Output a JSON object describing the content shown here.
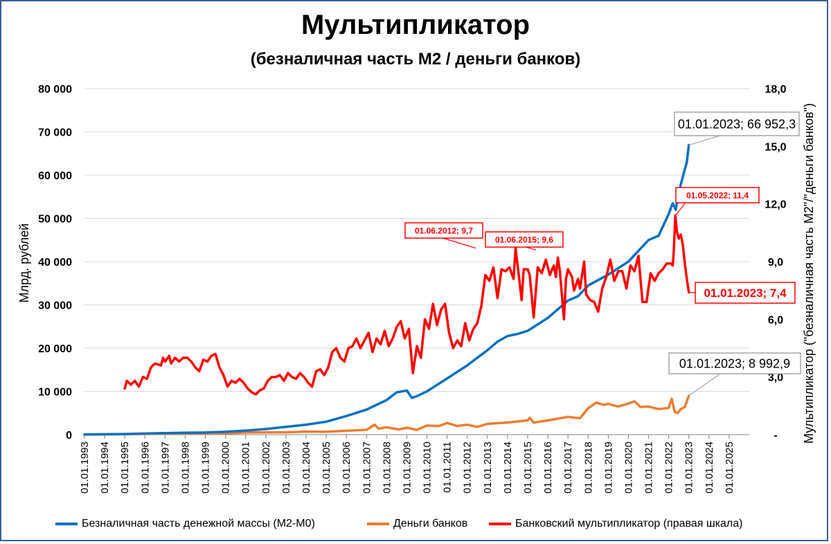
{
  "title": "Мультипликатор",
  "subtitle": "(безналичная часть М2 / деньги банков)",
  "chart_data": {
    "type": "line",
    "left_axis": {
      "label": "Млрд. рублей",
      "range": [
        0,
        80000
      ],
      "ticks": [
        "0",
        "10 000",
        "20 000",
        "30 000",
        "40 000",
        "50 000",
        "60 000",
        "70 000",
        "80 000"
      ]
    },
    "right_axis": {
      "label": "Мультипликатор (\"безналичная часть М2\"/\"деньги банков\")",
      "range": [
        0,
        18
      ],
      "ticks": [
        "-",
        "3,0",
        "6,0",
        "9,0",
        "12,0",
        "15,0",
        "18,0"
      ]
    },
    "x_axis": {
      "range": [
        1993,
        2026
      ],
      "ticks": [
        "01.01.1993",
        "01.01.1994",
        "01.01.1995",
        "01.01.1996",
        "01.01.1997",
        "01.01.1998",
        "01.01.1999",
        "01.01.2000",
        "01.01.2001",
        "01.01.2002",
        "01.01.2003",
        "01.01.2004",
        "01.01.2005",
        "01.01.2006",
        "01.01.2007",
        "01.01.2008",
        "01.01.2009",
        "01.01.2010",
        "01.01.2011",
        "01.01.2012",
        "01.01.2013",
        "01.01.2014",
        "01.01.2015",
        "01.01.2016",
        "01.01.2017",
        "01.01.2018",
        "01.01.2019",
        "01.01.2020",
        "01.01.2021",
        "01.01.2022",
        "01.01.2023",
        "01.01.2024",
        "01.01.2025"
      ]
    },
    "grid": "horizontal",
    "legend_position": "bottom",
    "series": [
      {
        "name": "Безналичная часть денежной массы (М2-М0)",
        "axis": "left",
        "color": "#0070c0",
        "points": [
          [
            1993,
            50
          ],
          [
            1994,
            100
          ],
          [
            1995,
            150
          ],
          [
            1996,
            250
          ],
          [
            1997,
            350
          ],
          [
            1998,
            450
          ],
          [
            1999,
            500
          ],
          [
            2000,
            650
          ],
          [
            2001,
            950
          ],
          [
            2002,
            1300
          ],
          [
            2003,
            1800
          ],
          [
            2004,
            2300
          ],
          [
            2005,
            3000
          ],
          [
            2006,
            4300
          ],
          [
            2007,
            5800
          ],
          [
            2008,
            8000
          ],
          [
            2008.5,
            9800
          ],
          [
            2009,
            10200
          ],
          [
            2009.25,
            8500
          ],
          [
            2009.5,
            8900
          ],
          [
            2010,
            10000
          ],
          [
            2011,
            13000
          ],
          [
            2012,
            16000
          ],
          [
            2012.5,
            17800
          ],
          [
            2013,
            19500
          ],
          [
            2013.5,
            21500
          ],
          [
            2014,
            22800
          ],
          [
            2014.5,
            23300
          ],
          [
            2015,
            24000
          ],
          [
            2016,
            27000
          ],
          [
            2017,
            31000
          ],
          [
            2017.5,
            32000
          ],
          [
            2018,
            34500
          ],
          [
            2019,
            37000
          ],
          [
            2020,
            40000
          ],
          [
            2021,
            45000
          ],
          [
            2021.5,
            46000
          ],
          [
            2022,
            51000
          ],
          [
            2022.2,
            53500
          ],
          [
            2022.35,
            52000
          ],
          [
            2022.5,
            56000
          ],
          [
            2022.75,
            60500
          ],
          [
            2022.9,
            63000
          ],
          [
            2023,
            66952.3
          ]
        ]
      },
      {
        "name": "Деньги банков",
        "axis": "left",
        "color": "#ed7d31",
        "points": [
          [
            1993,
            20
          ],
          [
            1995,
            100
          ],
          [
            1996,
            180
          ],
          [
            1997,
            230
          ],
          [
            1998,
            300
          ],
          [
            1999,
            250
          ],
          [
            2000,
            300
          ],
          [
            2001,
            500
          ],
          [
            2002,
            550
          ],
          [
            2003,
            550
          ],
          [
            2004,
            700
          ],
          [
            2005,
            650
          ],
          [
            2006,
            900
          ],
          [
            2007,
            1100
          ],
          [
            2007.4,
            2300
          ],
          [
            2007.6,
            1400
          ],
          [
            2008,
            1700
          ],
          [
            2008.6,
            1200
          ],
          [
            2009,
            1600
          ],
          [
            2009.5,
            1100
          ],
          [
            2010,
            2100
          ],
          [
            2010.6,
            2000
          ],
          [
            2011,
            2700
          ],
          [
            2011.5,
            2000
          ],
          [
            2012,
            2300
          ],
          [
            2012.5,
            1800
          ],
          [
            2013,
            2500
          ],
          [
            2014,
            2800
          ],
          [
            2015,
            3300
          ],
          [
            2015.1,
            3900
          ],
          [
            2015.3,
            2800
          ],
          [
            2016,
            3300
          ],
          [
            2017,
            4100
          ],
          [
            2017.6,
            3800
          ],
          [
            2018,
            6100
          ],
          [
            2018.4,
            7400
          ],
          [
            2018.8,
            6900
          ],
          [
            2019,
            7100
          ],
          [
            2019.5,
            6500
          ],
          [
            2020,
            7200
          ],
          [
            2020.3,
            7700
          ],
          [
            2020.6,
            6400
          ],
          [
            2021,
            6500
          ],
          [
            2021.5,
            5900
          ],
          [
            2022,
            6200
          ],
          [
            2022.15,
            8300
          ],
          [
            2022.3,
            5200
          ],
          [
            2022.45,
            5000
          ],
          [
            2022.6,
            5900
          ],
          [
            2022.8,
            6400
          ],
          [
            2023,
            8992.9
          ]
        ]
      },
      {
        "name": "Банковский мультипликатор (правая шкала)",
        "axis": "right",
        "color": "#ff0000",
        "points": [
          [
            1995,
            2.4
          ],
          [
            1995.1,
            2.8
          ],
          [
            1995.3,
            2.6
          ],
          [
            1995.5,
            2.8
          ],
          [
            1995.7,
            2.5
          ],
          [
            1995.9,
            3.0
          ],
          [
            1996.1,
            2.9
          ],
          [
            1996.3,
            3.5
          ],
          [
            1996.5,
            3.7
          ],
          [
            1996.8,
            3.6
          ],
          [
            1996.9,
            4.0
          ],
          [
            1997.0,
            3.8
          ],
          [
            1997.2,
            4.1
          ],
          [
            1997.3,
            3.7
          ],
          [
            1997.5,
            4.0
          ],
          [
            1997.7,
            3.8
          ],
          [
            1997.9,
            4.0
          ],
          [
            1998.1,
            4.0
          ],
          [
            1998.3,
            3.8
          ],
          [
            1998.5,
            3.5
          ],
          [
            1998.7,
            3.3
          ],
          [
            1998.9,
            3.9
          ],
          [
            1999.1,
            3.8
          ],
          [
            1999.3,
            4.1
          ],
          [
            1999.5,
            4.2
          ],
          [
            1999.7,
            3.5
          ],
          [
            1999.9,
            3.1
          ],
          [
            2000.1,
            2.5
          ],
          [
            2000.3,
            2.8
          ],
          [
            2000.5,
            2.7
          ],
          [
            2000.7,
            2.9
          ],
          [
            2000.9,
            2.7
          ],
          [
            2001.1,
            2.4
          ],
          [
            2001.3,
            2.2
          ],
          [
            2001.5,
            2.1
          ],
          [
            2001.7,
            2.3
          ],
          [
            2001.9,
            2.4
          ],
          [
            2002.1,
            2.8
          ],
          [
            2002.3,
            3.0
          ],
          [
            2002.5,
            3.0
          ],
          [
            2002.7,
            3.1
          ],
          [
            2002.9,
            2.8
          ],
          [
            2003.1,
            3.2
          ],
          [
            2003.3,
            3.0
          ],
          [
            2003.5,
            2.9
          ],
          [
            2003.7,
            3.2
          ],
          [
            2003.9,
            3.0
          ],
          [
            2004.1,
            2.7
          ],
          [
            2004.3,
            2.5
          ],
          [
            2004.5,
            3.3
          ],
          [
            2004.7,
            3.4
          ],
          [
            2004.9,
            3.1
          ],
          [
            2005.1,
            3.5
          ],
          [
            2005.3,
            4.3
          ],
          [
            2005.5,
            4.5
          ],
          [
            2005.7,
            4.0
          ],
          [
            2005.9,
            3.8
          ],
          [
            2006.1,
            4.5
          ],
          [
            2006.3,
            4.6
          ],
          [
            2006.5,
            5.0
          ],
          [
            2006.7,
            4.5
          ],
          [
            2006.9,
            4.9
          ],
          [
            2007.1,
            5.3
          ],
          [
            2007.3,
            4.3
          ],
          [
            2007.5,
            5.0
          ],
          [
            2007.7,
            4.7
          ],
          [
            2007.9,
            5.4
          ],
          [
            2008.1,
            4.6
          ],
          [
            2008.3,
            5.0
          ],
          [
            2008.5,
            5.6
          ],
          [
            2008.7,
            5.9
          ],
          [
            2008.9,
            5.0
          ],
          [
            2009.1,
            5.5
          ],
          [
            2009.3,
            3.2
          ],
          [
            2009.5,
            4.6
          ],
          [
            2009.7,
            4.0
          ],
          [
            2009.9,
            6.0
          ],
          [
            2010.1,
            5.5
          ],
          [
            2010.3,
            6.8
          ],
          [
            2010.5,
            5.7
          ],
          [
            2010.7,
            6.5
          ],
          [
            2010.9,
            6.8
          ],
          [
            2011.1,
            5.3
          ],
          [
            2011.3,
            4.5
          ],
          [
            2011.5,
            4.9
          ],
          [
            2011.7,
            4.6
          ],
          [
            2011.9,
            5.8
          ],
          [
            2012.1,
            4.9
          ],
          [
            2012.3,
            5.5
          ],
          [
            2012.5,
            5.8
          ],
          [
            2012.7,
            6.7
          ],
          [
            2012.9,
            8.3
          ],
          [
            2013.1,
            8.0
          ],
          [
            2013.3,
            8.7
          ],
          [
            2013.5,
            7.1
          ],
          [
            2013.7,
            8.6
          ],
          [
            2013.9,
            8.5
          ],
          [
            2014.1,
            8.7
          ],
          [
            2014.3,
            8.1
          ],
          [
            2014.4,
            9.7
          ],
          [
            2014.5,
            8.8
          ],
          [
            2014.7,
            7.0
          ],
          [
            2014.8,
            8.6
          ],
          [
            2015.0,
            8.6
          ],
          [
            2015.1,
            8.3
          ],
          [
            2015.3,
            6.1
          ],
          [
            2015.5,
            8.7
          ],
          [
            2015.7,
            8.4
          ],
          [
            2015.9,
            9.1
          ],
          [
            2016.1,
            8.3
          ],
          [
            2016.3,
            8.8
          ],
          [
            2016.4,
            8.2
          ],
          [
            2016.5,
            9.2
          ],
          [
            2016.6,
            8.5
          ],
          [
            2016.8,
            6.0
          ],
          [
            2016.9,
            8.1
          ],
          [
            2017.0,
            8.6
          ],
          [
            2017.2,
            8.2
          ],
          [
            2017.3,
            7.5
          ],
          [
            2017.5,
            8.1
          ],
          [
            2017.6,
            7.6
          ],
          [
            2017.8,
            9.0
          ],
          [
            2017.9,
            7.3
          ],
          [
            2018.1,
            7.0
          ],
          [
            2018.3,
            6.9
          ],
          [
            2018.5,
            6.4
          ],
          [
            2018.7,
            7.6
          ],
          [
            2018.9,
            8.2
          ],
          [
            2019.1,
            9.1
          ],
          [
            2019.3,
            8.0
          ],
          [
            2019.5,
            8.5
          ],
          [
            2019.7,
            8.5
          ],
          [
            2019.9,
            7.6
          ],
          [
            2020.1,
            8.8
          ],
          [
            2020.3,
            8.5
          ],
          [
            2020.5,
            9.3
          ],
          [
            2020.7,
            6.9
          ],
          [
            2020.9,
            6.9
          ],
          [
            2021.1,
            8.4
          ],
          [
            2021.3,
            8.0
          ],
          [
            2021.5,
            8.4
          ],
          [
            2021.7,
            8.6
          ],
          [
            2021.9,
            8.9
          ],
          [
            2022.1,
            8.9
          ],
          [
            2022.2,
            8.8
          ],
          [
            2022.25,
            9.5
          ],
          [
            2022.33,
            11.4
          ],
          [
            2022.4,
            10.6
          ],
          [
            2022.5,
            10.2
          ],
          [
            2022.6,
            10.4
          ],
          [
            2022.7,
            9.9
          ],
          [
            2022.8,
            8.9
          ],
          [
            2022.9,
            8.1
          ],
          [
            2023.0,
            7.4
          ]
        ]
      }
    ],
    "annotations": [
      {
        "text": "01.01.2023;  66 952,3",
        "series": "Безналичная часть денежной массы (М2-М0)",
        "x": 2023,
        "y": 66952.3
      },
      {
        "text": "01.01.2023;  8 992,9",
        "series": "Деньги банков",
        "x": 2023,
        "y": 8992.9
      },
      {
        "text": "01.05.2022;  11,4",
        "series": "Банковский мультипликатор (правая шкала)",
        "x": 2022.33,
        "y": 11.4
      },
      {
        "text": "01.06.2012;  9,7",
        "series": "Банковский мультипликатор (правая шкала)",
        "x": 2012.42,
        "y": 9.7
      },
      {
        "text": "01.06.2015;  9,6",
        "series": "Банковский мультипликатор (правая шкала)",
        "x": 2015.42,
        "y": 9.6
      },
      {
        "text": "01.01.2023;  7,4",
        "series": "Банковский мультипликатор (правая шкала)",
        "x": 2023,
        "y": 7.4
      }
    ]
  }
}
